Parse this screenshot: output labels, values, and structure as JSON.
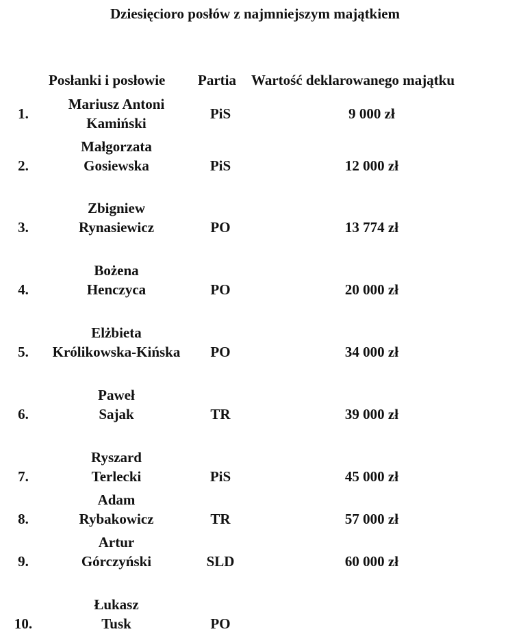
{
  "title": "Dziesięcioro posłów z najmniejszym majątkiem",
  "headers": {
    "name": "Posłanki i posłowie",
    "party": "Partia",
    "value": "Wartość deklarowanego majątku"
  },
  "rows": [
    {
      "num": "1.",
      "first": "Mariusz Antoni",
      "last": "Kamiński",
      "party": "PiS",
      "value": "9 000 zł"
    },
    {
      "num": "2.",
      "first": "Małgorzata",
      "last": "Gosiewska",
      "party": "PiS",
      "value": "12 000 zł"
    },
    {
      "num": "3.",
      "first": "Zbigniew",
      "last": "Rynasiewicz",
      "party": "PO",
      "value": "13 774 zł"
    },
    {
      "num": "4.",
      "first": "Bożena",
      "last": "Henczyca",
      "party": "PO",
      "value": "20 000 zł"
    },
    {
      "num": "5.",
      "first": "Elżbieta",
      "last": "Królikowska-Kińska",
      "party": "PO",
      "value": "34 000 zł"
    },
    {
      "num": "6.",
      "first": "Paweł",
      "last": "Sajak",
      "party": "TR",
      "value": "39 000 zł"
    },
    {
      "num": "7.",
      "first": "Ryszard",
      "last": "Terlecki",
      "party": "PiS",
      "value": "45 000 zł"
    },
    {
      "num": "8.",
      "first": "Adam",
      "last": "Rybakowicz",
      "party": "TR",
      "value": "57 000 zł"
    },
    {
      "num": "9.",
      "first": "Artur",
      "last": "Górczyński",
      "party": "SLD",
      "value": "60 000 zł"
    },
    {
      "num": "10.",
      "first": "Łukasz",
      "last": "Tusk",
      "party": "PO",
      "value": ""
    }
  ]
}
